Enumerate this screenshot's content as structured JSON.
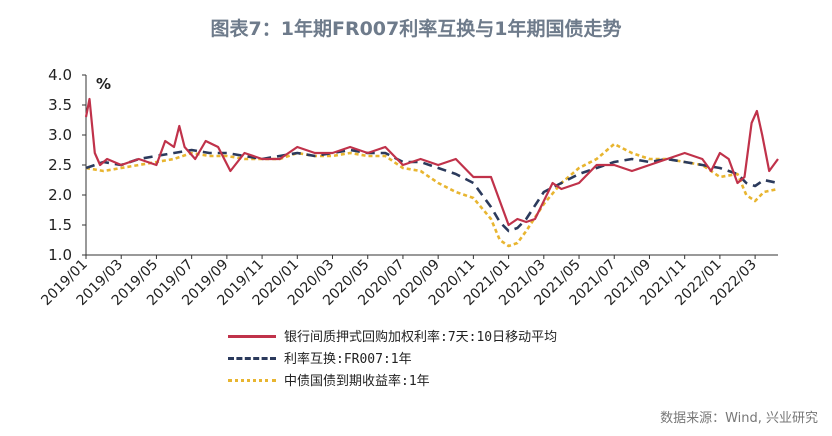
{
  "title": "图表7：1年期FR007利率互换与1年期国债走势",
  "source": "数据来源：Wind, 兴业研究",
  "chart_data": {
    "type": "line",
    "ylabel": "%",
    "ylim": [
      1.0,
      4.0
    ],
    "yticks": [
      "4.0",
      "3.5",
      "3.0",
      "2.5",
      "2.0",
      "1.5",
      "1.0"
    ],
    "xlim": [
      0,
      39.3
    ],
    "xticks": [
      "2019/01",
      "2019/03",
      "2019/05",
      "2019/07",
      "2019/09",
      "2019/11",
      "2020/01",
      "2020/03",
      "2020/05",
      "2020/07",
      "2020/09",
      "2020/11",
      "2021/01",
      "2021/03",
      "2021/05",
      "2021/07",
      "2021/09",
      "2021/11",
      "2022/01",
      "2022/03"
    ],
    "grid": false,
    "legend_position": "bottom",
    "series": [
      {
        "name": "银行间质押式回购加权利率:7天:10日移动平均",
        "color": "#c0324a",
        "dash": "solid",
        "points": [
          [
            0,
            3.3
          ],
          [
            0.2,
            3.6
          ],
          [
            0.5,
            2.7
          ],
          [
            0.8,
            2.5
          ],
          [
            1.2,
            2.6
          ],
          [
            2,
            2.5
          ],
          [
            3,
            2.6
          ],
          [
            4,
            2.5
          ],
          [
            4.5,
            2.9
          ],
          [
            5,
            2.8
          ],
          [
            5.3,
            3.15
          ],
          [
            5.6,
            2.8
          ],
          [
            6.2,
            2.6
          ],
          [
            6.8,
            2.9
          ],
          [
            7.5,
            2.8
          ],
          [
            8.2,
            2.4
          ],
          [
            9,
            2.7
          ],
          [
            10,
            2.6
          ],
          [
            11,
            2.6
          ],
          [
            12,
            2.8
          ],
          [
            13,
            2.7
          ],
          [
            14,
            2.7
          ],
          [
            15,
            2.8
          ],
          [
            16,
            2.7
          ],
          [
            17,
            2.8
          ],
          [
            18,
            2.5
          ],
          [
            19,
            2.6
          ],
          [
            20,
            2.5
          ],
          [
            21,
            2.6
          ],
          [
            22,
            2.3
          ],
          [
            23,
            2.3
          ],
          [
            23.5,
            1.9
          ],
          [
            24,
            1.5
          ],
          [
            24.5,
            1.6
          ],
          [
            25,
            1.55
          ],
          [
            25.5,
            1.6
          ],
          [
            26,
            1.9
          ],
          [
            26.5,
            2.2
          ],
          [
            27,
            2.1
          ],
          [
            28,
            2.2
          ],
          [
            29,
            2.5
          ],
          [
            30,
            2.5
          ],
          [
            31,
            2.4
          ],
          [
            32,
            2.5
          ],
          [
            33,
            2.6
          ],
          [
            34,
            2.7
          ],
          [
            35,
            2.6
          ],
          [
            35.5,
            2.4
          ],
          [
            36,
            2.7
          ],
          [
            36.5,
            2.6
          ],
          [
            37,
            2.2
          ],
          [
            37.4,
            2.3
          ],
          [
            37.8,
            3.2
          ],
          [
            38.1,
            3.4
          ],
          [
            38.4,
            3.0
          ],
          [
            38.8,
            2.4
          ],
          [
            39.3,
            2.6
          ]
        ]
      },
      {
        "name": "利率互换:FR007:1年",
        "color": "#2b3a5c",
        "dash": "dashed",
        "points": [
          [
            0,
            2.45
          ],
          [
            1,
            2.55
          ],
          [
            2,
            2.5
          ],
          [
            3,
            2.6
          ],
          [
            4,
            2.65
          ],
          [
            5,
            2.7
          ],
          [
            6,
            2.75
          ],
          [
            7,
            2.7
          ],
          [
            8,
            2.7
          ],
          [
            9,
            2.65
          ],
          [
            10,
            2.6
          ],
          [
            11,
            2.65
          ],
          [
            12,
            2.7
          ],
          [
            13,
            2.65
          ],
          [
            14,
            2.7
          ],
          [
            15,
            2.75
          ],
          [
            16,
            2.7
          ],
          [
            17,
            2.7
          ],
          [
            18,
            2.55
          ],
          [
            19,
            2.55
          ],
          [
            20,
            2.45
          ],
          [
            21,
            2.35
          ],
          [
            22,
            2.2
          ],
          [
            23,
            1.8
          ],
          [
            23.5,
            1.55
          ],
          [
            24,
            1.4
          ],
          [
            24.5,
            1.45
          ],
          [
            25,
            1.6
          ],
          [
            26,
            2.05
          ],
          [
            27,
            2.2
          ],
          [
            28,
            2.35
          ],
          [
            29,
            2.45
          ],
          [
            30,
            2.55
          ],
          [
            31,
            2.6
          ],
          [
            32,
            2.55
          ],
          [
            33,
            2.6
          ],
          [
            34,
            2.55
          ],
          [
            35,
            2.5
          ],
          [
            36,
            2.45
          ],
          [
            37,
            2.35
          ],
          [
            37.5,
            2.2
          ],
          [
            38,
            2.15
          ],
          [
            38.5,
            2.25
          ],
          [
            39.3,
            2.2
          ]
        ]
      },
      {
        "name": "中债国债到期收益率:1年",
        "color": "#e8b530",
        "dash": "dotted",
        "points": [
          [
            0,
            2.45
          ],
          [
            1,
            2.4
          ],
          [
            2,
            2.45
          ],
          [
            3,
            2.5
          ],
          [
            4,
            2.55
          ],
          [
            5,
            2.6
          ],
          [
            6,
            2.7
          ],
          [
            7,
            2.65
          ],
          [
            8,
            2.65
          ],
          [
            9,
            2.6
          ],
          [
            10,
            2.6
          ],
          [
            11,
            2.6
          ],
          [
            12,
            2.7
          ],
          [
            13,
            2.65
          ],
          [
            14,
            2.65
          ],
          [
            15,
            2.7
          ],
          [
            16,
            2.65
          ],
          [
            17,
            2.65
          ],
          [
            18,
            2.45
          ],
          [
            19,
            2.4
          ],
          [
            20,
            2.2
          ],
          [
            21,
            2.05
          ],
          [
            22,
            1.95
          ],
          [
            23,
            1.6
          ],
          [
            23.5,
            1.25
          ],
          [
            24,
            1.15
          ],
          [
            24.5,
            1.2
          ],
          [
            25,
            1.4
          ],
          [
            26,
            1.85
          ],
          [
            27,
            2.2
          ],
          [
            28,
            2.45
          ],
          [
            29,
            2.6
          ],
          [
            30,
            2.85
          ],
          [
            31,
            2.7
          ],
          [
            32,
            2.6
          ],
          [
            33,
            2.6
          ],
          [
            34,
            2.55
          ],
          [
            35,
            2.5
          ],
          [
            36,
            2.3
          ],
          [
            37,
            2.35
          ],
          [
            37.5,
            2.0
          ],
          [
            38,
            1.9
          ],
          [
            38.5,
            2.05
          ],
          [
            39.3,
            2.1
          ]
        ]
      }
    ]
  }
}
